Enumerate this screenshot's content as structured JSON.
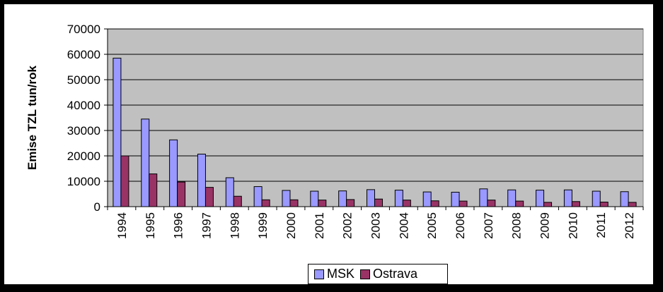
{
  "chart_data": {
    "type": "bar",
    "title": "",
    "xlabel": "",
    "ylabel": "Emise TZL tun/rok",
    "ylim": [
      0,
      70000
    ],
    "yticks": [
      0,
      10000,
      20000,
      30000,
      40000,
      50000,
      60000,
      70000
    ],
    "grid": true,
    "legend_position": "bottom",
    "plot_background": "#c0c0c0",
    "categories": [
      "1994",
      "1995",
      "1996",
      "1997",
      "1998",
      "1999",
      "2000",
      "2001",
      "2002",
      "2003",
      "2004",
      "2005",
      "2006",
      "2007",
      "2008",
      "2009",
      "2010",
      "2011",
      "2012"
    ],
    "series": [
      {
        "name": "MSK",
        "color": "#9999ff",
        "values": [
          58500,
          34500,
          26300,
          20700,
          11400,
          7900,
          6400,
          6100,
          6200,
          6700,
          6500,
          5800,
          5700,
          7000,
          6600,
          6500,
          6600,
          6100,
          5900
        ]
      },
      {
        "name": "Ostrava",
        "color": "#993366",
        "values": [
          20000,
          12900,
          9700,
          7600,
          4100,
          2700,
          2700,
          2600,
          2800,
          3000,
          2600,
          2300,
          2200,
          2600,
          2200,
          1700,
          2000,
          1800,
          1700
        ]
      }
    ]
  }
}
